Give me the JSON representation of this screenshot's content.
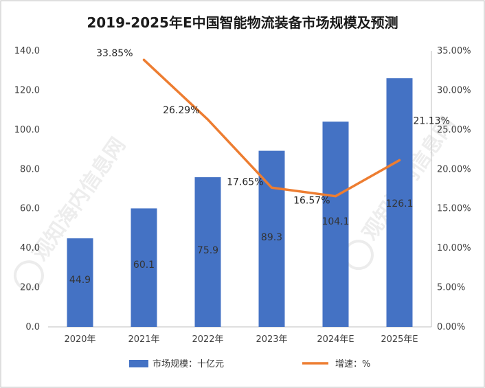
{
  "chart_data": {
    "type": "bar",
    "title": "2019-2025年E中国智能物流装备市场规模及预测",
    "categories": [
      "2020年",
      "2021年",
      "2022年",
      "2023年",
      "2024年E",
      "2025年E"
    ],
    "series": [
      {
        "name": "市场规模：十亿元",
        "type": "bar",
        "axis": "left",
        "values": [
          44.9,
          60.1,
          75.9,
          89.3,
          104.1,
          126.1
        ],
        "labels": [
          "44.9",
          "60.1",
          "75.9",
          "89.3",
          "104.1",
          "126.1"
        ],
        "color": "#4472C4"
      },
      {
        "name": "增速：%",
        "type": "line",
        "axis": "right",
        "points": [
          {
            "category": "2021年",
            "value": 33.85,
            "label": "33.85%"
          },
          {
            "category": "2022年",
            "value": 26.29,
            "label": "26.29%"
          },
          {
            "category": "2023年",
            "value": 17.65,
            "label": "17.65%"
          },
          {
            "category": "2024年E",
            "value": 16.57,
            "label": "16.57%"
          },
          {
            "category": "2025年E",
            "value": 21.13,
            "label": "21.13%"
          }
        ],
        "color": "#ED7D31"
      }
    ],
    "y_left": {
      "range": [
        0,
        140
      ],
      "ticks": [
        "0.0",
        "20.0",
        "40.0",
        "60.0",
        "80.0",
        "100.0",
        "120.0",
        "140.0"
      ]
    },
    "y_right": {
      "range": [
        0,
        35
      ],
      "ticks": [
        "0.00%",
        "5.00%",
        "10.00%",
        "15.00%",
        "20.00%",
        "25.00%",
        "30.00%",
        "35.00%"
      ]
    },
    "grid": false,
    "legend_position": "bottom",
    "watermarks": [
      "观知海内信息网",
      "观知海内信息网"
    ]
  }
}
